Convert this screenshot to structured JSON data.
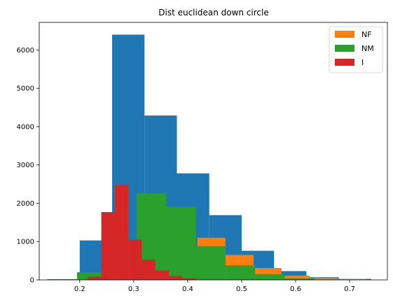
{
  "chart_data": {
    "type": "histogram",
    "title": "Dist euclidean down circle",
    "xlim": [
      0.125,
      0.77
    ],
    "ylim": [
      0,
      6720
    ],
    "xticks": [
      0.2,
      0.3,
      0.4,
      0.5,
      0.6,
      0.7
    ],
    "xtick_labels": [
      "0.2",
      "0.3",
      "0.4",
      "0.5",
      "0.6",
      "0.7"
    ],
    "yticks": [
      0,
      1000,
      2000,
      3000,
      4000,
      5000,
      6000
    ],
    "ytick_labels": [
      "0",
      "1000",
      "2000",
      "3000",
      "4000",
      "5000",
      "6000"
    ],
    "legend_position": "top-right",
    "legend": [
      {
        "label": "NF",
        "color": "#ff7f0e"
      },
      {
        "label": "NM",
        "color": "#2ca02c"
      },
      {
        "label": "I",
        "color": "#d62728"
      }
    ],
    "series": [
      {
        "color": "#1f77b4",
        "bins": [
          {
            "x0": 0.2,
            "x1": 0.26,
            "value": 1030
          },
          {
            "x0": 0.26,
            "x1": 0.32,
            "value": 6400
          },
          {
            "x0": 0.32,
            "x1": 0.38,
            "value": 4290
          },
          {
            "x0": 0.38,
            "x1": 0.44,
            "value": 2780
          },
          {
            "x0": 0.44,
            "x1": 0.5,
            "value": 1690
          },
          {
            "x0": 0.5,
            "x1": 0.56,
            "value": 760
          },
          {
            "x0": 0.56,
            "x1": 0.62,
            "value": 230
          },
          {
            "x0": 0.62,
            "x1": 0.68,
            "value": 70
          },
          {
            "x0": 0.68,
            "x1": 0.74,
            "value": 25
          }
        ]
      },
      {
        "name": "NF",
        "color": "#ff7f0e",
        "bins": [
          {
            "x0": 0.21,
            "x1": 0.262,
            "value": 30
          },
          {
            "x0": 0.262,
            "x1": 0.314,
            "value": 230
          },
          {
            "x0": 0.314,
            "x1": 0.366,
            "value": 720
          },
          {
            "x0": 0.366,
            "x1": 0.418,
            "value": 860
          },
          {
            "x0": 0.418,
            "x1": 0.47,
            "value": 1100
          },
          {
            "x0": 0.47,
            "x1": 0.522,
            "value": 650
          },
          {
            "x0": 0.522,
            "x1": 0.574,
            "value": 310
          },
          {
            "x0": 0.574,
            "x1": 0.626,
            "value": 110
          },
          {
            "x0": 0.626,
            "x1": 0.678,
            "value": 50
          },
          {
            "x0": 0.678,
            "x1": 0.73,
            "value": 20
          }
        ]
      },
      {
        "name": "NM",
        "color": "#2ca02c",
        "bins": [
          {
            "x0": 0.14,
            "x1": 0.195,
            "value": 20
          },
          {
            "x0": 0.195,
            "x1": 0.25,
            "value": 200
          },
          {
            "x0": 0.25,
            "x1": 0.305,
            "value": 1020
          },
          {
            "x0": 0.305,
            "x1": 0.36,
            "value": 2260
          },
          {
            "x0": 0.36,
            "x1": 0.415,
            "value": 1910
          },
          {
            "x0": 0.415,
            "x1": 0.47,
            "value": 880
          },
          {
            "x0": 0.47,
            "x1": 0.525,
            "value": 380
          },
          {
            "x0": 0.525,
            "x1": 0.58,
            "value": 150
          },
          {
            "x0": 0.58,
            "x1": 0.635,
            "value": 40
          },
          {
            "x0": 0.635,
            "x1": 0.69,
            "value": 10
          }
        ]
      },
      {
        "name": "I",
        "color": "#d62728",
        "bins": [
          {
            "x0": 0.215,
            "x1": 0.24,
            "value": 90
          },
          {
            "x0": 0.24,
            "x1": 0.265,
            "value": 1770
          },
          {
            "x0": 0.265,
            "x1": 0.29,
            "value": 2480
          },
          {
            "x0": 0.29,
            "x1": 0.315,
            "value": 1050
          },
          {
            "x0": 0.315,
            "x1": 0.34,
            "value": 530
          },
          {
            "x0": 0.34,
            "x1": 0.365,
            "value": 250
          },
          {
            "x0": 0.365,
            "x1": 0.39,
            "value": 100
          },
          {
            "x0": 0.39,
            "x1": 0.415,
            "value": 40
          },
          {
            "x0": 0.415,
            "x1": 0.44,
            "value": 10
          }
        ]
      }
    ]
  }
}
